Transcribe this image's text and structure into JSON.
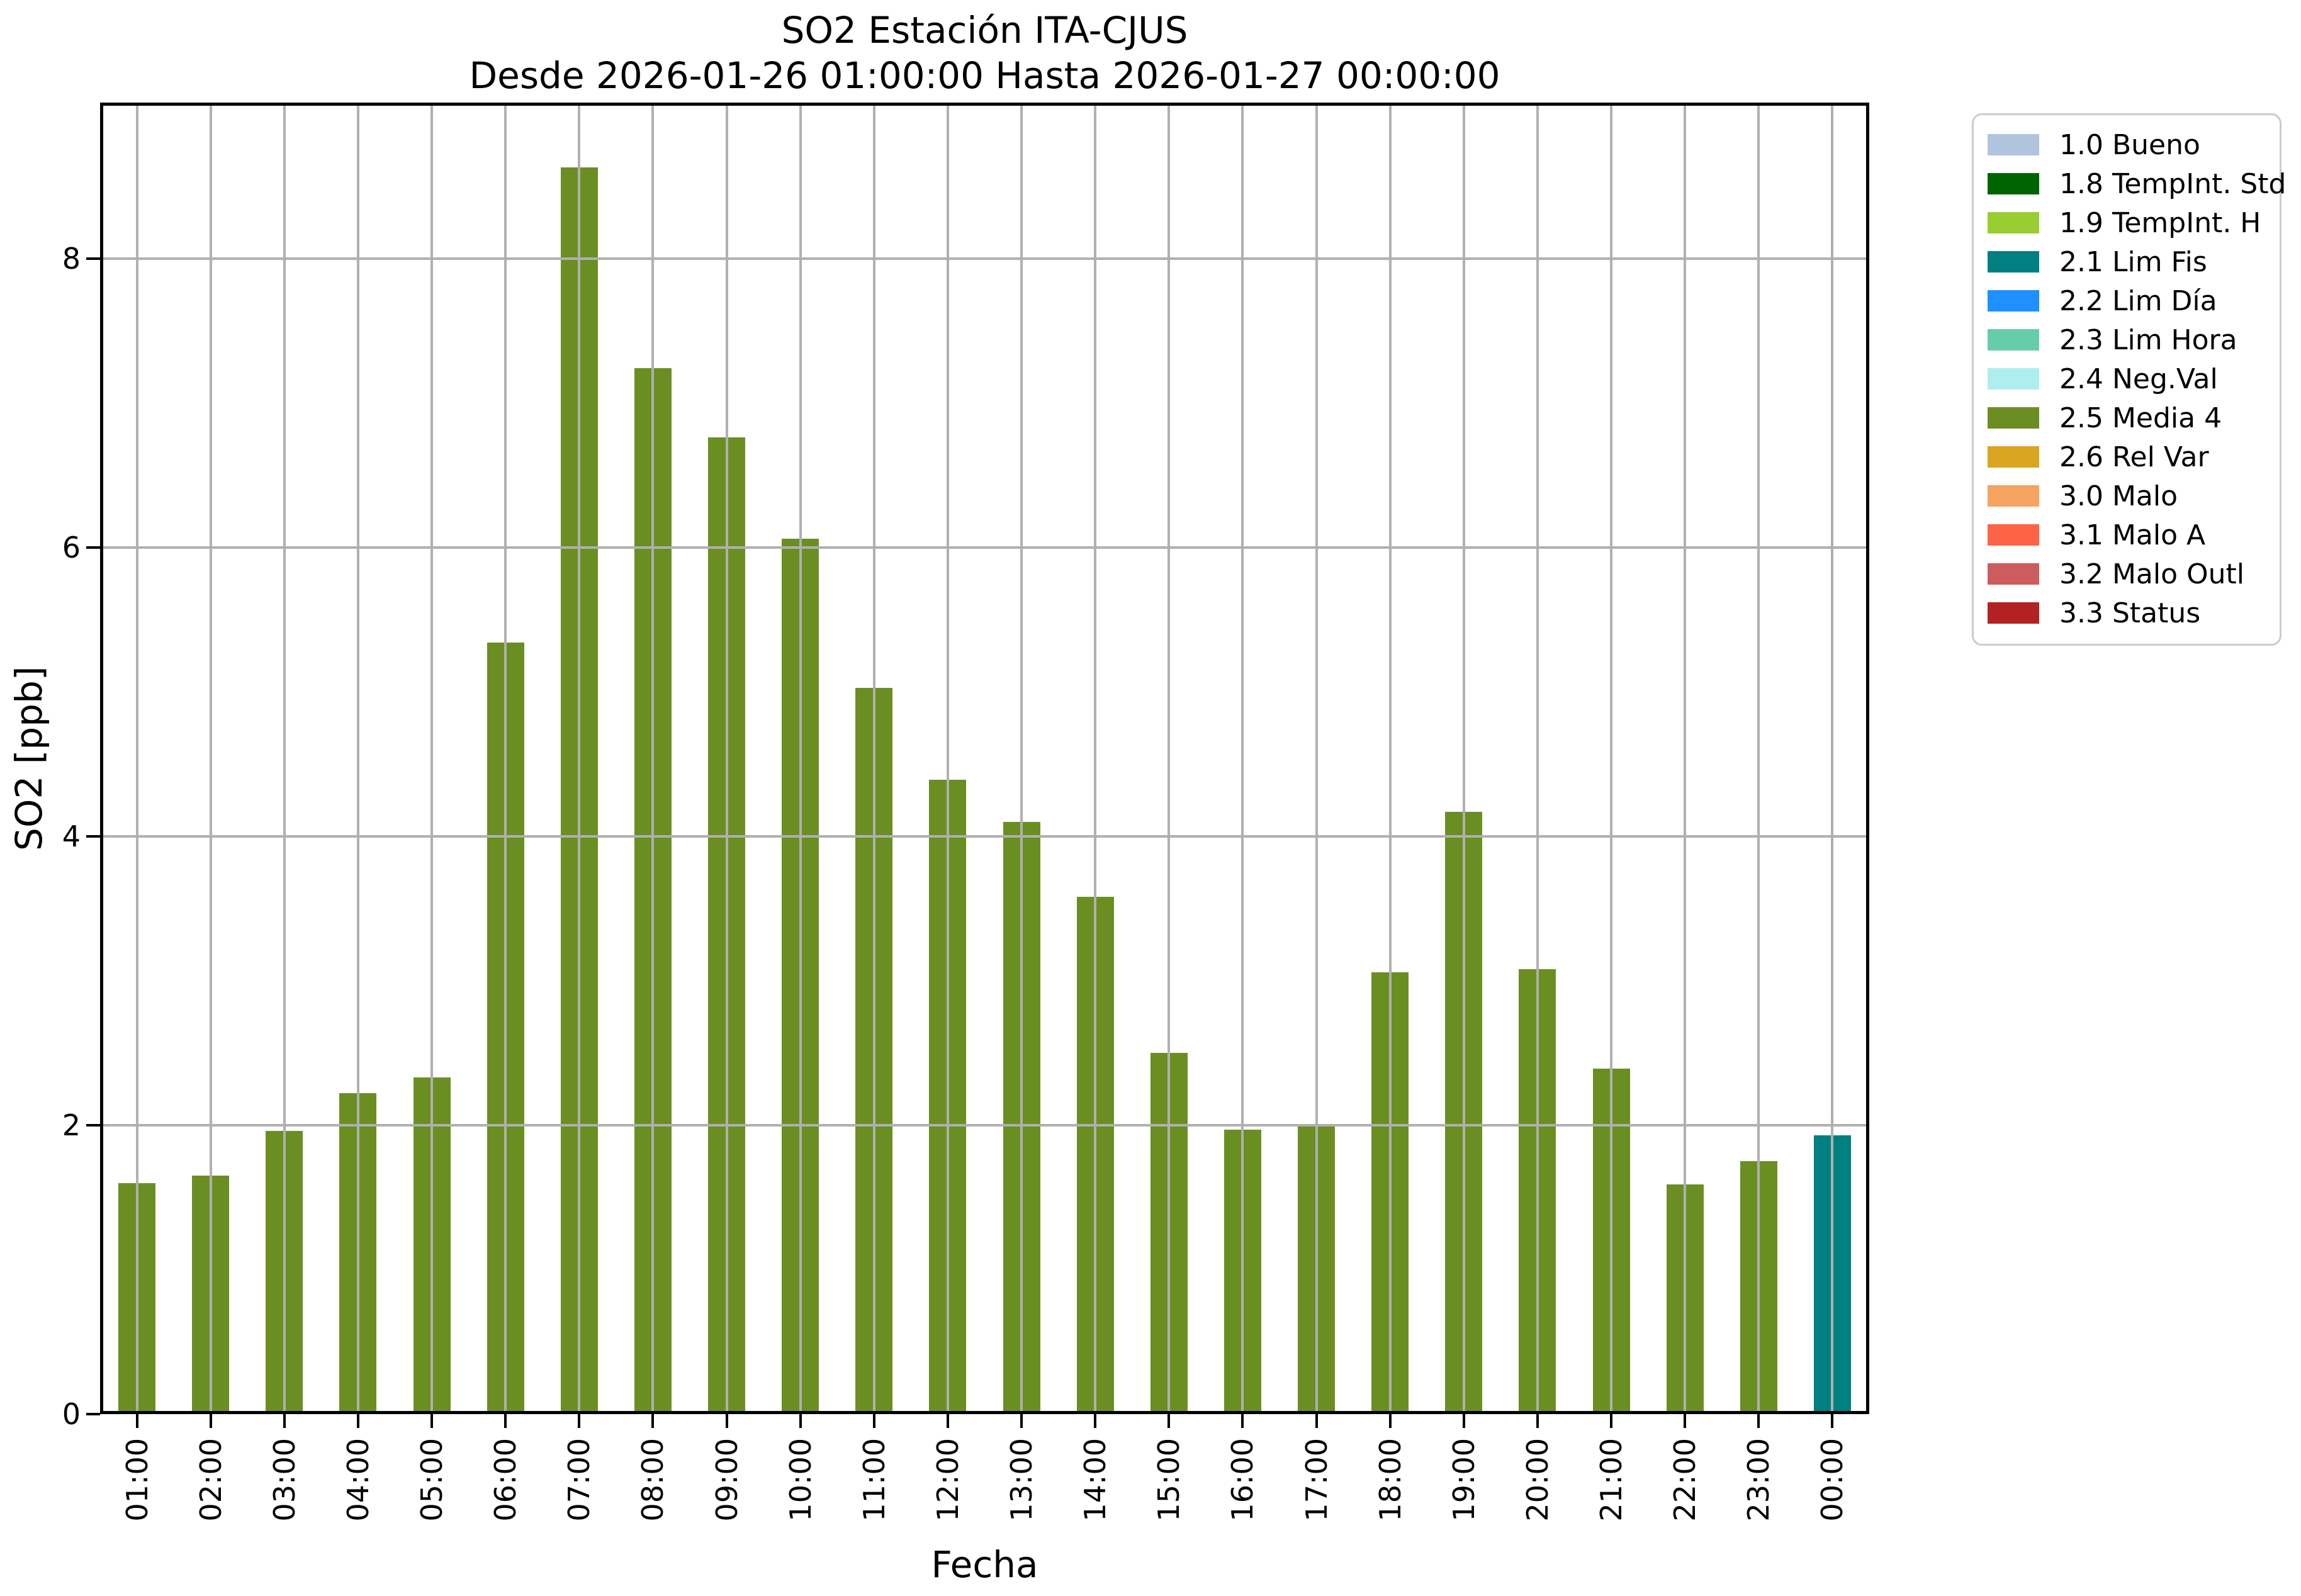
{
  "chart_data": {
    "type": "bar",
    "title": "SO2 Estación ITA-CJUS",
    "subtitle": "Desde 2026-01-26 01:00:00 Hasta 2026-01-27 00:00:00",
    "xlabel": "Fecha",
    "ylabel": "SO2 [ppb]",
    "ylim": [
      0,
      9.08
    ],
    "yticks": [
      0,
      2,
      4,
      6,
      8
    ],
    "grid": true,
    "grid_color": "#b0b0b0",
    "axis_color": "#000000",
    "background_color": "#ffffff",
    "legend_position": "outside-top-right",
    "categories": [
      "01:00",
      "02:00",
      "03:00",
      "04:00",
      "05:00",
      "06:00",
      "07:00",
      "08:00",
      "09:00",
      "10:00",
      "11:00",
      "12:00",
      "13:00",
      "14:00",
      "15:00",
      "16:00",
      "17:00",
      "18:00",
      "19:00",
      "20:00",
      "21:00",
      "22:00",
      "23:00",
      "00:00"
    ],
    "values": [
      1.6,
      1.65,
      1.96,
      2.22,
      2.33,
      5.34,
      8.63,
      7.24,
      6.76,
      6.06,
      5.03,
      4.39,
      4.1,
      3.58,
      2.5,
      1.97,
      2.0,
      3.06,
      4.17,
      3.08,
      2.39,
      1.59,
      1.75,
      1.93
    ],
    "bar_categories": [
      "2.5 Media 4",
      "2.5 Media 4",
      "2.5 Media 4",
      "2.5 Media 4",
      "2.5 Media 4",
      "2.5 Media 4",
      "2.5 Media 4",
      "2.5 Media 4",
      "2.5 Media 4",
      "2.5 Media 4",
      "2.5 Media 4",
      "2.5 Media 4",
      "2.5 Media 4",
      "2.5 Media 4",
      "2.5 Media 4",
      "2.5 Media 4",
      "2.5 Media 4",
      "2.5 Media 4",
      "2.5 Media 4",
      "2.5 Media 4",
      "2.5 Media 4",
      "2.5 Media 4",
      "2.5 Media 4",
      "2.1 Lim Fis"
    ],
    "series_colors": {
      "2.5 Media 4": "#6B8E23",
      "2.1 Lim Fis": "#008080"
    },
    "legend": [
      {
        "label": "1.0 Bueno",
        "color": "#B0C4DE"
      },
      {
        "label": "1.8 TempInt. Std",
        "color": "#006400"
      },
      {
        "label": "1.9 TempInt. H",
        "color": "#9ACD32"
      },
      {
        "label": "2.1 Lim Fis",
        "color": "#008080"
      },
      {
        "label": "2.2 Lim Día",
        "color": "#1E90FF"
      },
      {
        "label": "2.3 Lim Hora",
        "color": "#66CDAA"
      },
      {
        "label": "2.4 Neg.Val",
        "color": "#AFEEEE"
      },
      {
        "label": "2.5 Media 4",
        "color": "#6B8E23"
      },
      {
        "label": "2.6 Rel Var",
        "color": "#DAA520"
      },
      {
        "label": "3.0 Malo",
        "color": "#F4A460"
      },
      {
        "label": "3.1 Malo A",
        "color": "#FF6347"
      },
      {
        "label": "3.2 Malo Outl",
        "color": "#CD5C5C"
      },
      {
        "label": "3.3 Status",
        "color": "#B22222"
      }
    ]
  }
}
